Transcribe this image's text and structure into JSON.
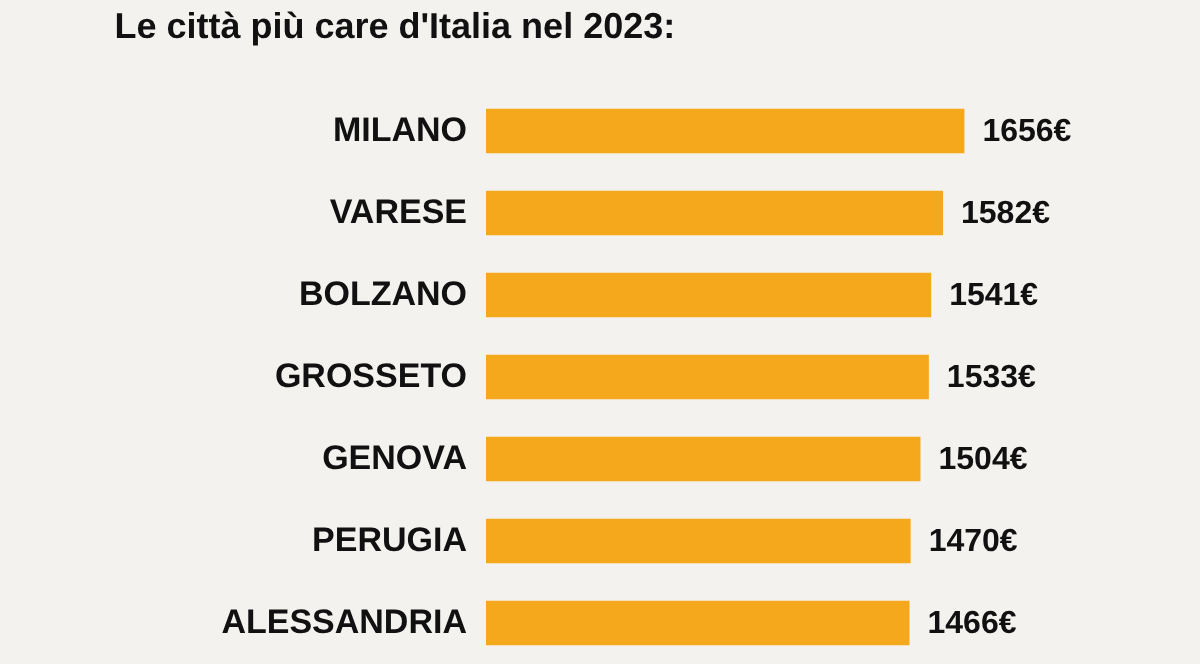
{
  "chart_data": {
    "type": "bar",
    "orientation": "horizontal",
    "title": "Le città più care d'Italia nel 2023:",
    "categories": [
      "MILANO",
      "VARESE",
      "BOLZANO",
      "GROSSETO",
      "GENOVA",
      "PERUGIA",
      "ALESSANDRIA"
    ],
    "values": [
      1656,
      1582,
      1541,
      1533,
      1504,
      1470,
      1466
    ],
    "value_labels": [
      "1656€",
      "1582€",
      "1541€",
      "1533€",
      "1504€",
      "1470€",
      "1466€"
    ],
    "color": "#f6a81c",
    "tick_labels": "y"
  }
}
